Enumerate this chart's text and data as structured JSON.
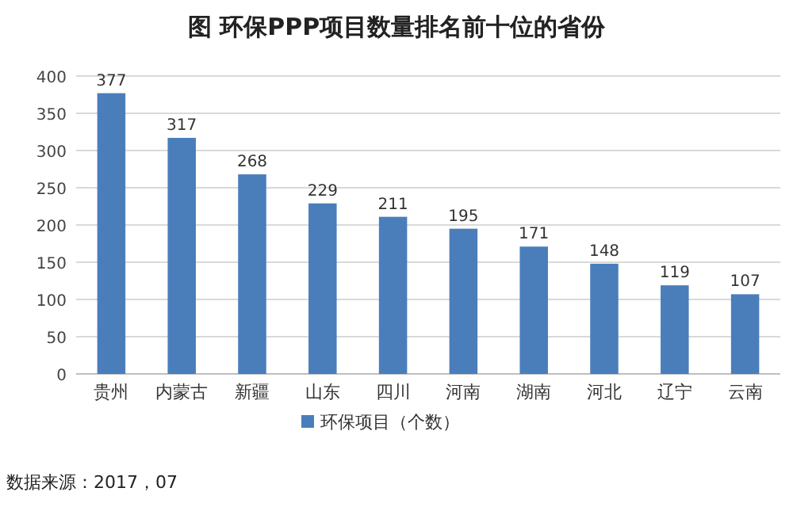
{
  "chart_data": {
    "type": "bar",
    "title": "图        环保PPP项目数量排名前十位的省份",
    "categories": [
      "贵州",
      "内蒙古",
      "新疆",
      "山东",
      "四川",
      "河南",
      "湖南",
      "河北",
      "辽宁",
      "云南"
    ],
    "series": [
      {
        "name": "环保项目（个数）",
        "color": "#4a7ebb",
        "values": [
          377,
          317,
          268,
          229,
          211,
          195,
          171,
          148,
          119,
          107
        ]
      }
    ],
    "ylim": [
      0,
      400
    ],
    "yticks": [
      0,
      50,
      100,
      150,
      200,
      250,
      300,
      350,
      400
    ],
    "grid": "y",
    "legend": "bottom",
    "data_labels": true,
    "annotations": [
      "数据来源：2017，07"
    ]
  }
}
